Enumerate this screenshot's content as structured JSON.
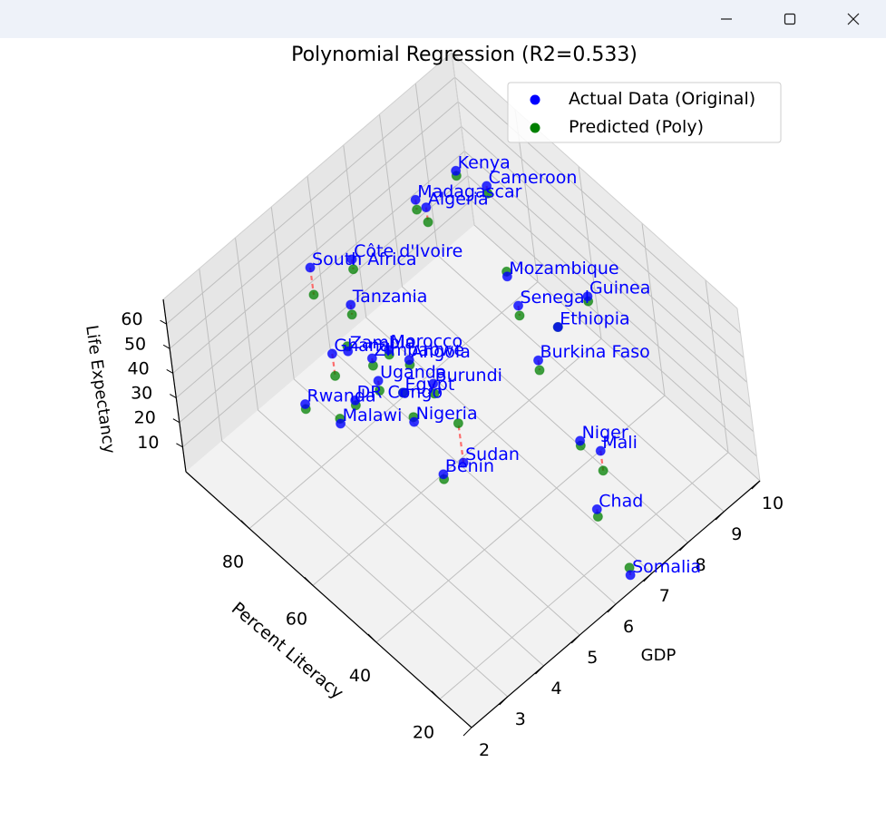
{
  "window": {
    "controls": {
      "minimize": "minimize-icon",
      "maximize": "maximize-icon",
      "close": "close-icon"
    }
  },
  "chart_data": {
    "type": "scatter",
    "projection": "3d",
    "title": "Polynomial Regression (R2=0.533)",
    "xlabel": "GDP",
    "ylabel": "Percent Literacy",
    "zlabel": "Life Expectancy",
    "xlim": [
      2,
      10
    ],
    "ylim": [
      10,
      100
    ],
    "zlim": [
      0,
      70
    ],
    "xticks": [
      2,
      3,
      4,
      5,
      6,
      7,
      8,
      9,
      10
    ],
    "yticks": [
      20,
      40,
      60,
      80
    ],
    "zticks": [
      10,
      20,
      30,
      40,
      50,
      60
    ],
    "grid": true,
    "legend": {
      "placement": "top-right",
      "entries": [
        "Actual Data (Original)",
        "Predicted (Poly)"
      ]
    },
    "series": [
      {
        "name": "Actual Data (Original)",
        "color": "#0000ff"
      },
      {
        "name": "Predicted (Poly)",
        "color": "#008000"
      }
    ],
    "residual_color": "#ff4d4d",
    "points": [
      {
        "label": "Kenya",
        "gdp": 8.6,
        "literacy": 84,
        "actual": 58,
        "predicted": 56
      },
      {
        "label": "Cameroon",
        "gdp": 8.9,
        "literacy": 78,
        "actual": 55,
        "predicted": 52
      },
      {
        "label": "Côte d'Ivoire",
        "gdp": 6.0,
        "literacy": 88,
        "actual": 50,
        "predicted": 46
      },
      {
        "label": "Algeria",
        "gdp": 7.6,
        "literacy": 82,
        "actual": 58,
        "predicted": 52
      },
      {
        "label": "Madagascar",
        "gdp": 7.5,
        "literacy": 84,
        "actual": 60,
        "predicted": 56
      },
      {
        "label": "South Africa",
        "gdp": 5.0,
        "literacy": 89,
        "actual": 58,
        "predicted": 47
      },
      {
        "label": "Tanzania",
        "gdp": 5.4,
        "literacy": 82,
        "actual": 46,
        "predicted": 42
      },
      {
        "label": "Morocco",
        "gdp": 5.5,
        "literacy": 72,
        "actual": 38,
        "predicted": 36
      },
      {
        "label": "Zambia",
        "gdp": 4.9,
        "literacy": 78,
        "actual": 38,
        "predicted": 40
      },
      {
        "label": "Zimbabwe",
        "gdp": 5.2,
        "literacy": 74,
        "actual": 36,
        "predicted": 33
      },
      {
        "label": "Angola",
        "gdp": 5.7,
        "literacy": 68,
        "actual": 36,
        "predicted": 34
      },
      {
        "label": "Ghana",
        "gdp": 4.5,
        "literacy": 78,
        "actual": 42,
        "predicted": 33
      },
      {
        "label": "Uganda",
        "gdp": 5.0,
        "literacy": 70,
        "actual": 34,
        "predicted": 30
      },
      {
        "label": "Burundi",
        "gdp": 5.8,
        "literacy": 62,
        "actual": 32,
        "predicted": 28
      },
      {
        "label": "Egypt",
        "gdp": 5.3,
        "literacy": 66,
        "actual": 30,
        "predicted": 30
      },
      {
        "label": "DR Congo",
        "gdp": 4.5,
        "literacy": 72,
        "actual": 30,
        "predicted": 28
      },
      {
        "label": "Rwanda",
        "gdp": 3.8,
        "literacy": 80,
        "actual": 28,
        "predicted": 26
      },
      {
        "label": "Malawi",
        "gdp": 4.2,
        "literacy": 74,
        "actual": 22,
        "predicted": 24
      },
      {
        "label": "Nigeria",
        "gdp": 5.2,
        "literacy": 62,
        "actual": 24,
        "predicted": 26
      },
      {
        "label": "Sudan",
        "gdp": 5.6,
        "literacy": 52,
        "actual": 14,
        "predicted": 30
      },
      {
        "label": "Benin",
        "gdp": 5.2,
        "literacy": 54,
        "actual": 12,
        "predicted": 10
      },
      {
        "label": "Mozambique",
        "gdp": 8.0,
        "literacy": 62,
        "actual": 48,
        "predicted": 50
      },
      {
        "label": "Senegal",
        "gdp": 7.9,
        "literacy": 58,
        "actual": 42,
        "predicted": 38
      },
      {
        "label": "Ethiopia",
        "gdp": 8.4,
        "literacy": 52,
        "actual": 34,
        "predicted": 34
      },
      {
        "label": "Guinea",
        "gdp": 9.1,
        "literacy": 50,
        "actual": 40,
        "predicted": 38
      },
      {
        "label": "Burkina Faso",
        "gdp": 7.8,
        "literacy": 52,
        "actual": 28,
        "predicted": 24
      },
      {
        "label": "Niger",
        "gdp": 7.6,
        "literacy": 38,
        "actual": 14,
        "predicted": 12
      },
      {
        "label": "Mali",
        "gdp": 7.8,
        "literacy": 34,
        "actual": 12,
        "predicted": 4
      },
      {
        "label": "Chad",
        "gdp": 7.1,
        "literacy": 28,
        "actual": 4,
        "predicted": 1
      },
      {
        "label": "Somalia",
        "gdp": 6.6,
        "literacy": 12,
        "actual": 2,
        "predicted": 5
      }
    ]
  }
}
